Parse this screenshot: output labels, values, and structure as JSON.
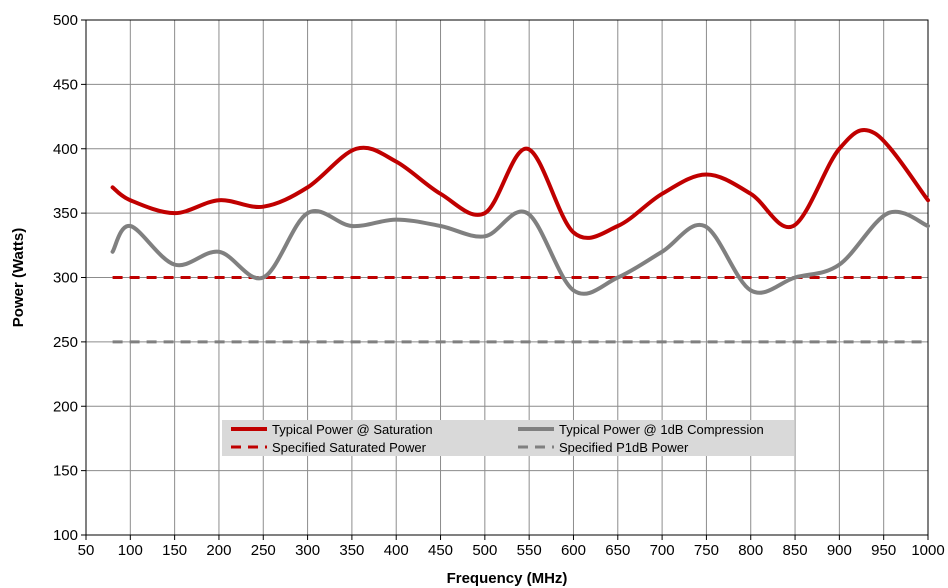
{
  "chart_data": {
    "type": "line",
    "title": "",
    "xlabel": "Frequency (MHz)",
    "ylabel": "Power (Watts)",
    "xlim": [
      50,
      1000
    ],
    "ylim": [
      100,
      500
    ],
    "x_ticks": [
      "50",
      "100",
      "150",
      "200",
      "250",
      "300",
      "350",
      "400",
      "450",
      "500",
      "550",
      "600",
      "650",
      "700",
      "750",
      "800",
      "850",
      "900",
      "950",
      "1000"
    ],
    "y_ticks": [
      "100",
      "150",
      "200",
      "250",
      "300",
      "350",
      "400",
      "450",
      "500"
    ],
    "grid": true,
    "legend_position": "bottom-center",
    "series": [
      {
        "name": "Typical Power @ Saturation",
        "color": "#c00000",
        "style": "solid",
        "x": [
          80,
          100,
          150,
          200,
          250,
          300,
          355,
          400,
          450,
          500,
          548,
          600,
          650,
          700,
          750,
          800,
          848,
          900,
          940,
          1000
        ],
        "values": [
          370,
          360,
          350,
          360,
          355,
          370,
          400,
          390,
          365,
          350,
          400,
          335,
          340,
          365,
          380,
          365,
          340,
          400,
          412,
          360
        ]
      },
      {
        "name": "Typical Power @ 1dB Compression",
        "color": "#808080",
        "style": "solid",
        "x": [
          80,
          100,
          150,
          200,
          250,
          300,
          350,
          400,
          450,
          500,
          548,
          600,
          650,
          700,
          748,
          800,
          850,
          900,
          955,
          1000
        ],
        "values": [
          320,
          340,
          310,
          320,
          300,
          350,
          340,
          345,
          340,
          332,
          350,
          290,
          300,
          320,
          340,
          290,
          300,
          310,
          350,
          340
        ]
      },
      {
        "name": "Specified Saturated Power",
        "color": "#c00000",
        "style": "dashed",
        "x": [
          80,
          1000
        ],
        "values": [
          300,
          300
        ]
      },
      {
        "name": "Specified P1dB Power",
        "color": "#808080",
        "style": "dashed",
        "x": [
          80,
          1000
        ],
        "values": [
          250,
          250
        ]
      }
    ]
  }
}
